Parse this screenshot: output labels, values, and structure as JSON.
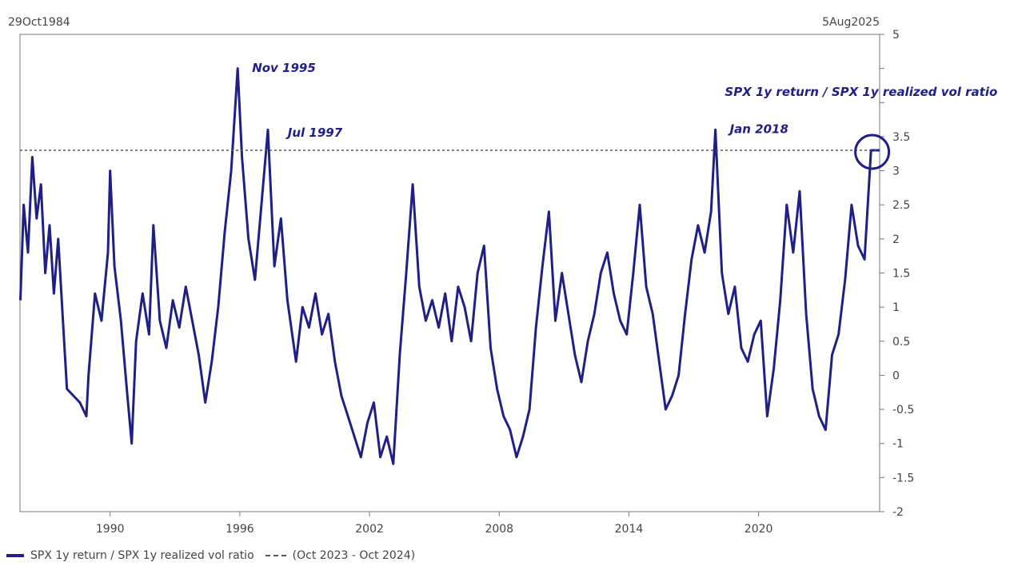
{
  "header": {
    "start_date": "29Oct1984",
    "end_date": "5Aug2025"
  },
  "legend": {
    "series_label": "SPX 1y return / SPX 1y realized vol ratio",
    "reference_label": "(Oct 2023 - Oct 2024)"
  },
  "chart_data": {
    "type": "line",
    "title": "",
    "xlabel": "",
    "ylabel": "",
    "xlim": [
      1985.83,
      2025.6
    ],
    "ylim": [
      -2,
      5
    ],
    "y_ticks": [
      -2,
      -1.5,
      -1,
      -0.5,
      0,
      0.5,
      1,
      1.5,
      2,
      2.5,
      3,
      3.5,
      4,
      4.5,
      5
    ],
    "y_tick_labels": [
      "-2",
      "-1.5",
      "-1",
      "-0.5",
      "0",
      "0.5",
      "1",
      "1.5",
      "2",
      "2.5",
      "3",
      "3.5",
      "",
      "",
      "5"
    ],
    "x_ticks": [
      1990,
      1996,
      2002,
      2008,
      2014,
      2020
    ],
    "x_tick_labels": [
      "1990",
      "1996",
      "2002",
      "2008",
      "2014",
      "2020"
    ],
    "grid": false,
    "series": [
      {
        "name": "SPX 1y return / SPX 1y realized vol ratio",
        "color": "#1f1f86",
        "x": [
          1985.85,
          1986.0,
          1986.2,
          1986.4,
          1986.6,
          1986.8,
          1987.0,
          1987.2,
          1987.4,
          1987.6,
          1987.8,
          1988.0,
          1988.3,
          1988.6,
          1988.9,
          1989.0,
          1989.3,
          1989.6,
          1989.9,
          1990.0,
          1990.2,
          1990.5,
          1990.8,
          1991.0,
          1991.2,
          1991.5,
          1991.8,
          1992.0,
          1992.3,
          1992.6,
          1992.9,
          1993.2,
          1993.5,
          1993.8,
          1994.1,
          1994.4,
          1994.7,
          1995.0,
          1995.3,
          1995.6,
          1995.9,
          1996.1,
          1996.4,
          1996.7,
          1997.0,
          1997.3,
          1997.6,
          1997.9,
          1998.2,
          1998.6,
          1998.9,
          1999.2,
          1999.5,
          1999.8,
          2000.1,
          2000.4,
          2000.7,
          2001.0,
          2001.3,
          2001.6,
          2001.9,
          2002.2,
          2002.5,
          2002.8,
          2003.1,
          2003.4,
          2003.7,
          2004.0,
          2004.3,
          2004.6,
          2004.9,
          2005.2,
          2005.5,
          2005.8,
          2006.1,
          2006.4,
          2006.7,
          2007.0,
          2007.3,
          2007.6,
          2007.9,
          2008.2,
          2008.5,
          2008.8,
          2009.1,
          2009.4,
          2009.7,
          2010.0,
          2010.3,
          2010.6,
          2010.9,
          2011.2,
          2011.5,
          2011.8,
          2012.1,
          2012.4,
          2012.7,
          2013.0,
          2013.3,
          2013.6,
          2013.9,
          2014.2,
          2014.5,
          2014.8,
          2015.1,
          2015.4,
          2015.7,
          2016.0,
          2016.3,
          2016.6,
          2016.9,
          2017.2,
          2017.5,
          2017.8,
          2018.0,
          2018.3,
          2018.6,
          2018.9,
          2019.2,
          2019.5,
          2019.8,
          2020.1,
          2020.4,
          2020.7,
          2021.0,
          2021.3,
          2021.6,
          2021.9,
          2022.2,
          2022.5,
          2022.8,
          2023.1,
          2023.4,
          2023.7,
          2024.0,
          2024.3,
          2024.6,
          2024.9,
          2025.2,
          2025.6
        ],
        "values": [
          1.1,
          2.5,
          1.8,
          3.2,
          2.3,
          2.8,
          1.5,
          2.2,
          1.2,
          2.0,
          0.9,
          -0.2,
          -0.3,
          -0.4,
          -0.6,
          0.0,
          1.2,
          0.8,
          1.8,
          3.0,
          1.6,
          0.8,
          -0.3,
          -1.0,
          0.5,
          1.2,
          0.6,
          2.2,
          0.8,
          0.4,
          1.1,
          0.7,
          1.3,
          0.8,
          0.3,
          -0.4,
          0.2,
          1.0,
          2.1,
          3.0,
          4.5,
          3.2,
          2.0,
          1.4,
          2.5,
          3.6,
          1.6,
          2.3,
          1.1,
          0.2,
          1.0,
          0.7,
          1.2,
          0.6,
          0.9,
          0.2,
          -0.3,
          -0.6,
          -0.9,
          -1.2,
          -0.7,
          -0.4,
          -1.2,
          -0.9,
          -1.3,
          0.3,
          1.5,
          2.8,
          1.3,
          0.8,
          1.1,
          0.7,
          1.2,
          0.5,
          1.3,
          1.0,
          0.5,
          1.5,
          1.9,
          0.4,
          -0.2,
          -0.6,
          -0.8,
          -1.2,
          -0.9,
          -0.5,
          0.7,
          1.6,
          2.4,
          0.8,
          1.5,
          0.9,
          0.3,
          -0.1,
          0.5,
          0.9,
          1.5,
          1.8,
          1.2,
          0.8,
          0.6,
          1.5,
          2.5,
          1.3,
          0.9,
          0.2,
          -0.5,
          -0.3,
          0.0,
          0.9,
          1.7,
          2.2,
          1.8,
          2.4,
          3.6,
          1.5,
          0.9,
          1.3,
          0.4,
          0.2,
          0.6,
          0.8,
          -0.6,
          0.1,
          1.1,
          2.5,
          1.8,
          2.7,
          0.9,
          -0.2,
          -0.6,
          -0.8,
          0.3,
          0.6,
          1.4,
          2.5,
          1.9,
          1.7,
          3.3,
          3.3
        ]
      },
      {
        "name": "(Oct 2023 - Oct 2024)",
        "color": "#555555",
        "style": "dashed",
        "x": [
          1985.83,
          2025.6
        ],
        "values": [
          3.3,
          3.3
        ]
      }
    ],
    "annotations": [
      {
        "text": "Nov 1995",
        "x": 1995.9,
        "y": 4.45
      },
      {
        "text": "Jul 1997",
        "x": 1997.55,
        "y": 3.5
      },
      {
        "text": "Jan 2018",
        "x": 2018.0,
        "y": 3.55
      },
      {
        "text": "SPX 1y return / SPX 1y realized vol ratio",
        "x": 2025.5,
        "y": 4.1
      }
    ],
    "highlight": {
      "x": 2025.4,
      "y": 3.3
    }
  }
}
